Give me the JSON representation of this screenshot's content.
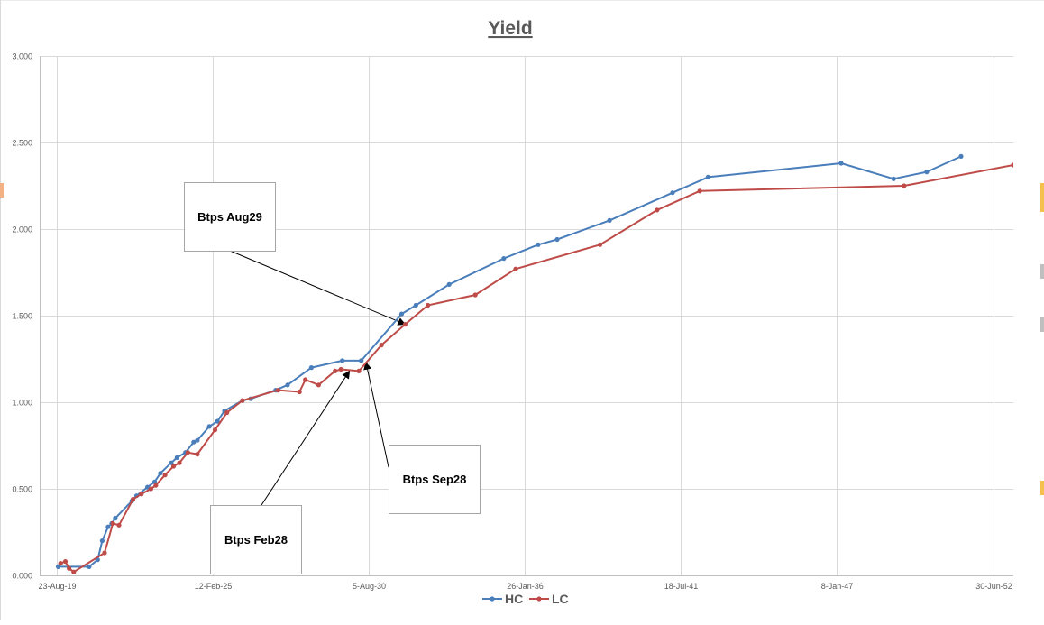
{
  "chart_data": {
    "type": "line",
    "title": "Yield",
    "xlabel": "",
    "ylabel": "",
    "ylim": [
      0,
      3.0
    ],
    "y_ticks": [
      "0.000",
      "0.500",
      "1.000",
      "1.500",
      "2.000",
      "2.500",
      "3.000"
    ],
    "x_ticks": [
      "23-Aug-19",
      "12-Feb-25",
      "5-Aug-30",
      "26-Jan-36",
      "18-Jul-41",
      "8-Jan-47",
      "30-Jun-52"
    ],
    "x_range": [
      "2019-01-20",
      "2053-03-15"
    ],
    "grid": true,
    "legend_position": "bottom",
    "series": [
      {
        "name": "HC",
        "color": "#4a7ebb",
        "points": [
          [
            "2019-09-15",
            0.05
          ],
          [
            "2020-10-15",
            0.05
          ],
          [
            "2021-02-01",
            0.09
          ],
          [
            "2021-04-01",
            0.2
          ],
          [
            "2021-06-15",
            0.28
          ],
          [
            "2021-08-01",
            0.3
          ],
          [
            "2021-09-15",
            0.33
          ],
          [
            "2022-04-15",
            0.43
          ],
          [
            "2022-06-15",
            0.46
          ],
          [
            "2022-11-01",
            0.51
          ],
          [
            "2023-02-01",
            0.54
          ],
          [
            "2023-04-15",
            0.59
          ],
          [
            "2023-09-01",
            0.65
          ],
          [
            "2023-11-15",
            0.68
          ],
          [
            "2024-03-01",
            0.71
          ],
          [
            "2024-06-15",
            0.77
          ],
          [
            "2024-08-01",
            0.78
          ],
          [
            "2025-01-01",
            0.86
          ],
          [
            "2025-04-15",
            0.89
          ],
          [
            "2025-07-15",
            0.95
          ],
          [
            "2026-03-01",
            1.01
          ],
          [
            "2026-06-15",
            1.02
          ],
          [
            "2027-05-01",
            1.07
          ],
          [
            "2027-10-01",
            1.1
          ],
          [
            "2028-08-01",
            1.2
          ],
          [
            "2029-09-01",
            1.24
          ],
          [
            "2030-05-01",
            1.24
          ],
          [
            "2031-10-01",
            1.51
          ],
          [
            "2032-04-01",
            1.56
          ],
          [
            "2033-06-01",
            1.68
          ],
          [
            "2035-05-01",
            1.83
          ],
          [
            "2036-07-15",
            1.91
          ],
          [
            "2037-03-15",
            1.94
          ],
          [
            "2039-01-15",
            2.05
          ],
          [
            "2041-04-01",
            2.21
          ],
          [
            "2042-07-01",
            2.3
          ],
          [
            "2047-03-01",
            2.38
          ],
          [
            "2049-01-01",
            2.29
          ],
          [
            "2050-03-01",
            2.33
          ],
          [
            "2051-05-15",
            2.42
          ]
        ]
      },
      {
        "name": "LC",
        "color": "#be4b48",
        "points": [
          [
            "2019-10-15",
            0.07
          ],
          [
            "2019-12-15",
            0.08
          ],
          [
            "2020-02-01",
            0.04
          ],
          [
            "2020-04-01",
            0.02
          ],
          [
            "2021-05-01",
            0.13
          ],
          [
            "2021-08-15",
            0.3
          ],
          [
            "2021-11-01",
            0.29
          ],
          [
            "2022-05-01",
            0.44
          ],
          [
            "2022-08-15",
            0.47
          ],
          [
            "2022-12-15",
            0.5
          ],
          [
            "2023-02-15",
            0.52
          ],
          [
            "2023-06-15",
            0.58
          ],
          [
            "2023-10-01",
            0.63
          ],
          [
            "2023-12-15",
            0.65
          ],
          [
            "2024-04-01",
            0.71
          ],
          [
            "2024-08-01",
            0.7
          ],
          [
            "2025-03-15",
            0.84
          ],
          [
            "2025-08-15",
            0.94
          ],
          [
            "2026-03-01",
            1.01
          ],
          [
            "2027-06-01",
            1.07
          ],
          [
            "2028-03-01",
            1.06
          ],
          [
            "2028-05-15",
            1.13
          ],
          [
            "2028-11-01",
            1.1
          ],
          [
            "2029-06-01",
            1.18
          ],
          [
            "2029-08-15",
            1.19
          ],
          [
            "2030-04-01",
            1.18
          ],
          [
            "2031-01-15",
            1.33
          ],
          [
            "2031-11-15",
            1.45
          ],
          [
            "2032-09-01",
            1.56
          ],
          [
            "2034-05-01",
            1.62
          ],
          [
            "2035-10-01",
            1.77
          ],
          [
            "2038-09-15",
            1.91
          ],
          [
            "2040-09-15",
            2.11
          ],
          [
            "2042-03-15",
            2.22
          ],
          [
            "2049-05-15",
            2.25
          ],
          [
            "2053-03-15",
            2.37
          ]
        ]
      }
    ],
    "annotations": [
      {
        "text": "Btps Aug29",
        "target": [
          "2031-11-15",
          1.45
        ]
      },
      {
        "text": "Btps Feb28",
        "target": [
          "2029-12-01",
          1.18
        ]
      },
      {
        "text": "Btps Sep28",
        "target": [
          "2030-07-01",
          1.23
        ]
      }
    ]
  }
}
